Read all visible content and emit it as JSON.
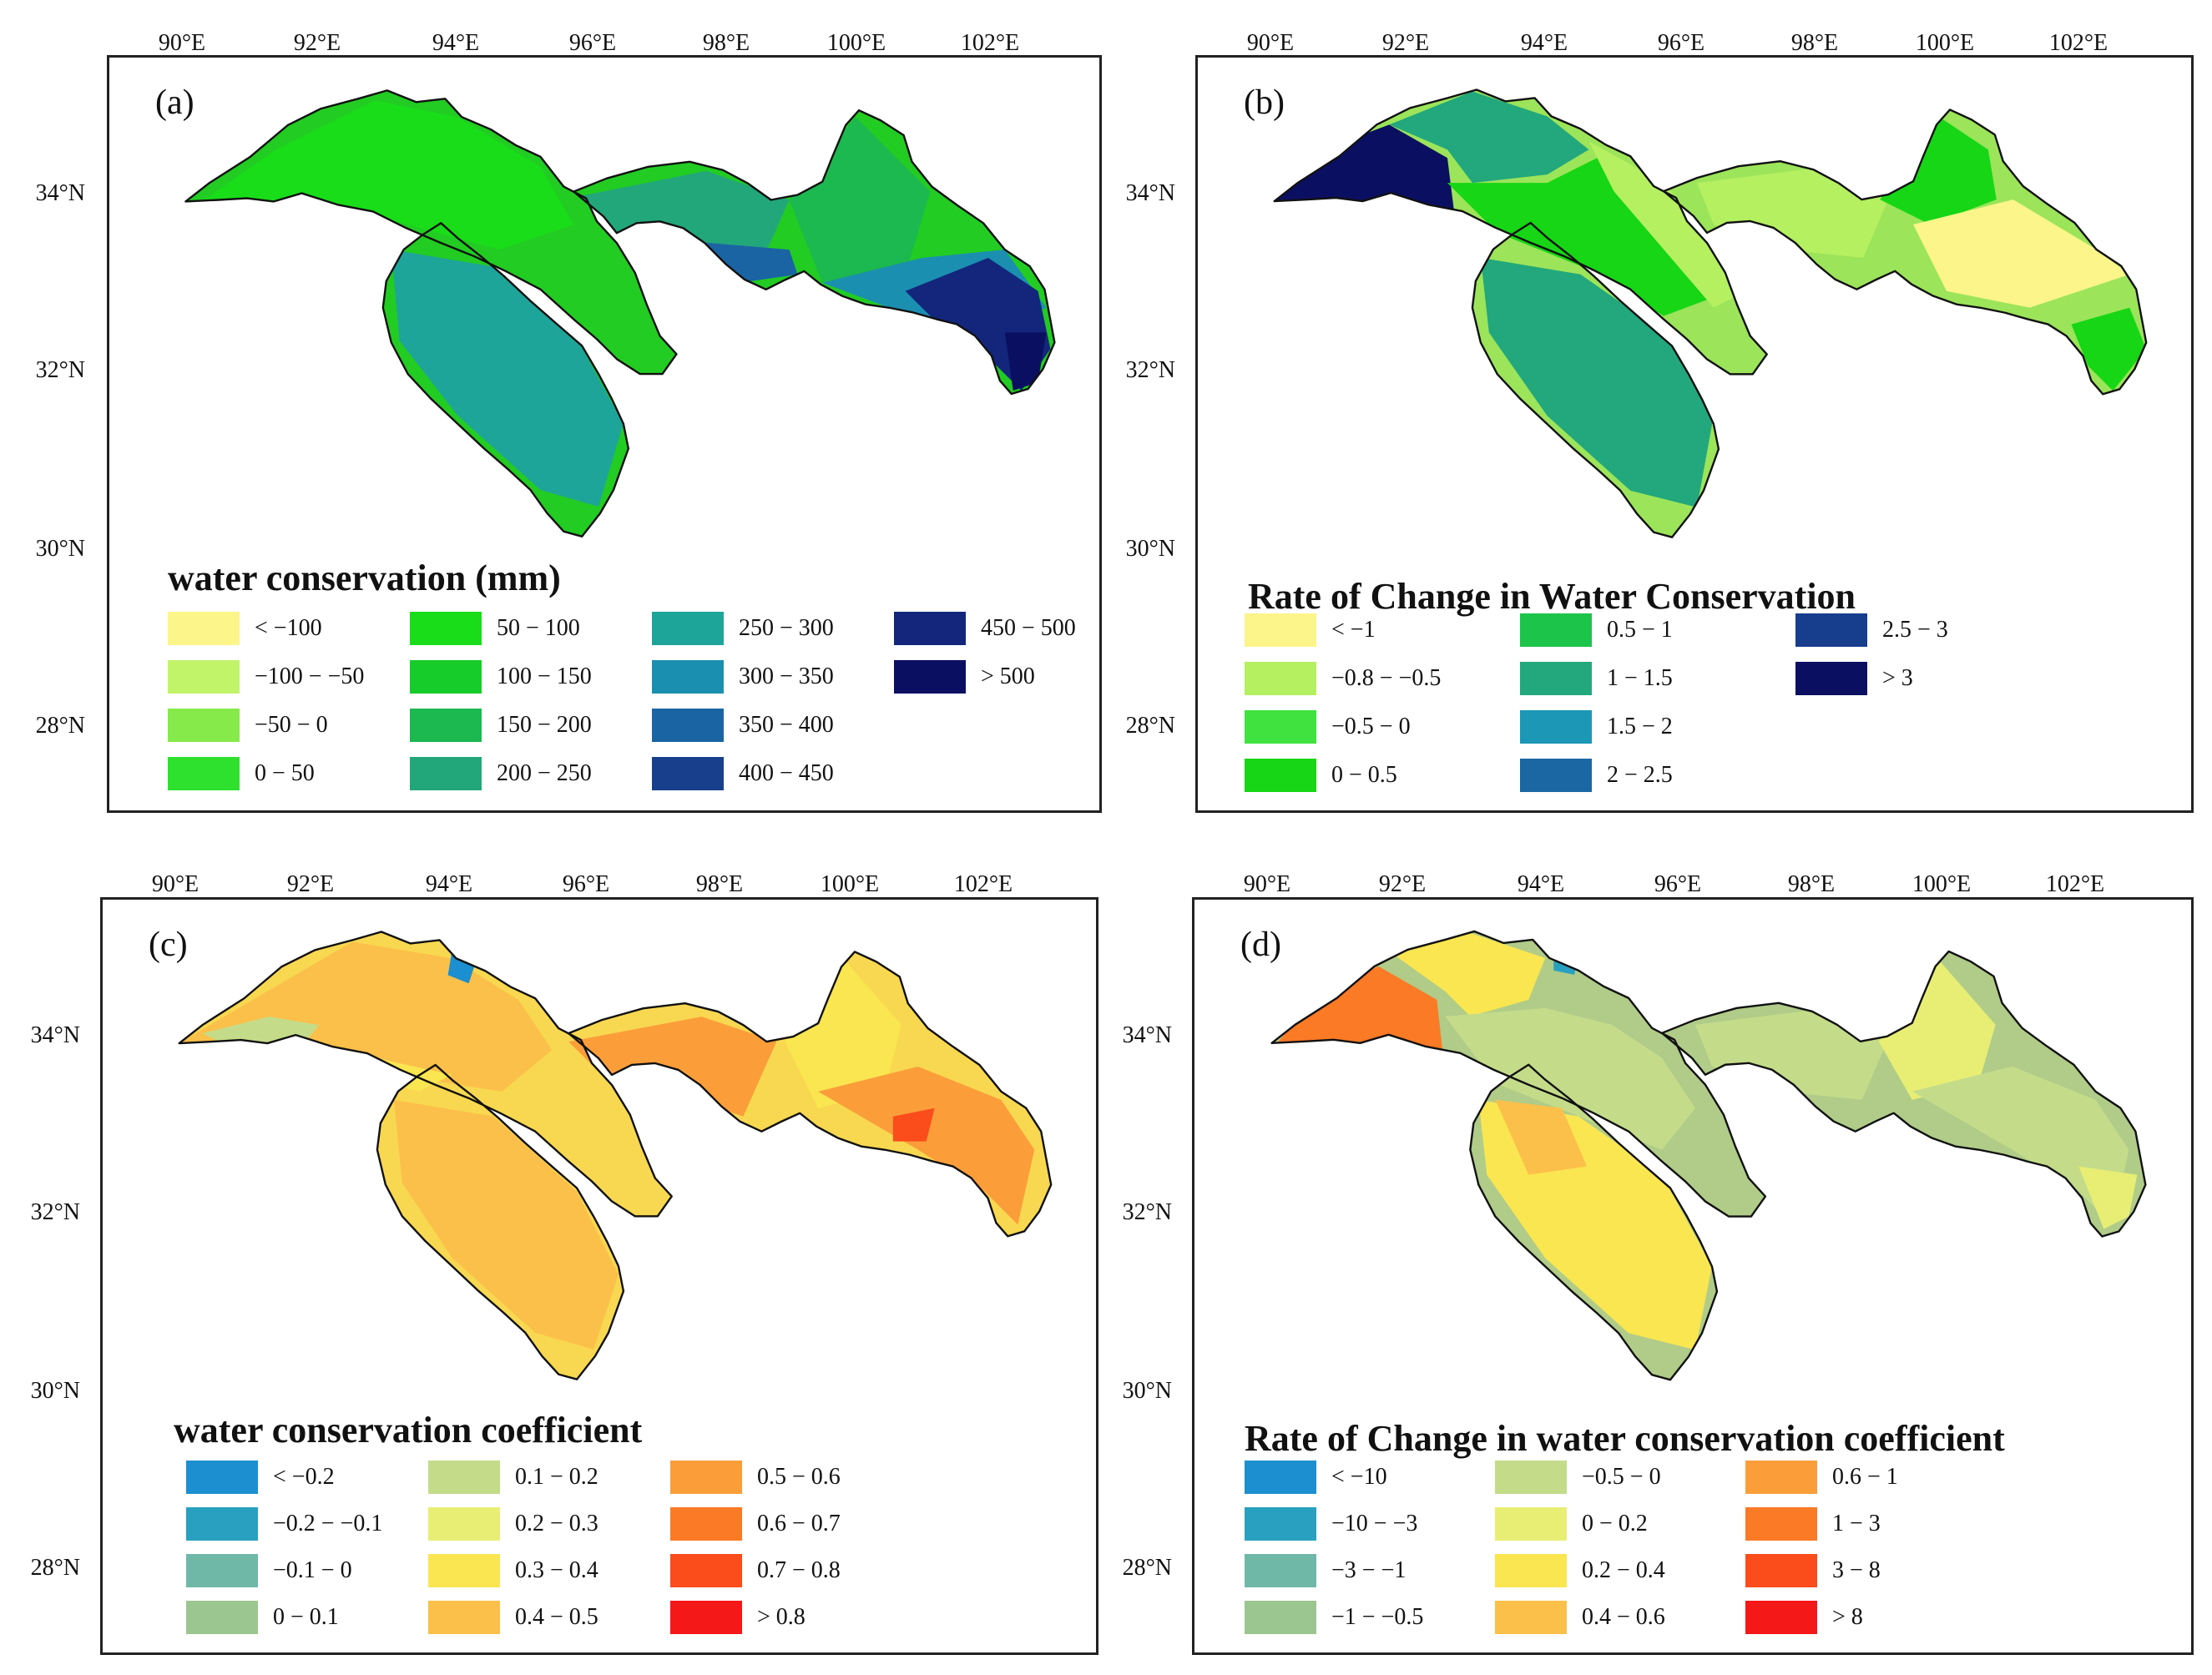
{
  "lon_labels": [
    "90°E",
    "92°E",
    "94°E",
    "96°E",
    "98°E",
    "100°E",
    "102°E"
  ],
  "lat_labels": [
    "34°N",
    "32°N",
    "30°N",
    "28°N"
  ],
  "panels": [
    {
      "id": "a",
      "label": "(a)",
      "legend_title": "water conservation (mm)",
      "base_color": "#22cc22",
      "legend": [
        {
          "label": "< −100",
          "color": "#fbf58a"
        },
        {
          "label": "−100 − −50",
          "color": "#c2f46a"
        },
        {
          "label": "−50 − 0",
          "color": "#86ea4a"
        },
        {
          "label": "0 − 50",
          "color": "#2fe12f"
        },
        {
          "label": "50 − 100",
          "color": "#19dd19"
        },
        {
          "label": "100 − 150",
          "color": "#16cc2a"
        },
        {
          "label": "150 − 200",
          "color": "#1cb850"
        },
        {
          "label": "200 − 250",
          "color": "#22a77a"
        },
        {
          "label": "250 − 300",
          "color": "#1ea59a"
        },
        {
          "label": "300 − 350",
          "color": "#1b8fb0"
        },
        {
          "label": "350 − 400",
          "color": "#1a64a3"
        },
        {
          "label": "400 − 450",
          "color": "#183f8c"
        },
        {
          "label": "450 − 500",
          "color": "#13267c"
        },
        {
          "label": "> 500",
          "color": "#0b0f62"
        }
      ]
    },
    {
      "id": "b",
      "label": "(b)",
      "legend_title": "Rate of Change in Water Conservation",
      "base_color": "#9ce45a",
      "legend": [
        {
          "label": "< −1",
          "color": "#fbf58a"
        },
        {
          "label": "−0.8 − −0.5",
          "color": "#b4f060"
        },
        {
          "label": "−0.5 − 0",
          "color": "#3fe23f"
        },
        {
          "label": "0 − 0.5",
          "color": "#16d616"
        },
        {
          "label": "0.5 − 1",
          "color": "#1cc44a"
        },
        {
          "label": "1 − 1.5",
          "color": "#22a87c"
        },
        {
          "label": "1.5 − 2",
          "color": "#1c97b5"
        },
        {
          "label": "2 − 2.5",
          "color": "#1a67a4"
        },
        {
          "label": "2.5 − 3",
          "color": "#173e8c"
        },
        {
          "label": "> 3",
          "color": "#0b0f62"
        }
      ]
    },
    {
      "id": "c",
      "label": "(c)",
      "legend_title": "water conservation coefficient",
      "base_color": "#f8d850",
      "legend": [
        {
          "label": "< −0.2",
          "color": "#1b8fd0"
        },
        {
          "label": "−0.2 − −0.1",
          "color": "#2aa0c0"
        },
        {
          "label": "−0.1 − 0",
          "color": "#6fb8a8"
        },
        {
          "label": "0 − 0.1",
          "color": "#9cc690"
        },
        {
          "label": "0.1 − 0.2",
          "color": "#c4dc8a"
        },
        {
          "label": "0.2 − 0.3",
          "color": "#e8ee74"
        },
        {
          "label": "0.3 − 0.4",
          "color": "#fae650"
        },
        {
          "label": "0.4 − 0.5",
          "color": "#fbc04a"
        },
        {
          "label": "0.5 − 0.6",
          "color": "#fb9e3a"
        },
        {
          "label": "0.6 − 0.7",
          "color": "#fb7a26"
        },
        {
          "label": "0.7 − 0.8",
          "color": "#fb4c1c"
        },
        {
          "label": "> 0.8",
          "color": "#f41818"
        }
      ]
    },
    {
      "id": "d",
      "label": "(d)",
      "legend_title": "Rate of Change in water conservation coefficient",
      "base_color": "#b0cc88",
      "legend": [
        {
          "label": "< −10",
          "color": "#1b8fd0"
        },
        {
          "label": "−10 − −3",
          "color": "#2aa0c0"
        },
        {
          "label": "−3 − −1",
          "color": "#6fb8a8"
        },
        {
          "label": "−1 − −0.5",
          "color": "#9cc690"
        },
        {
          "label": "−0.5 − 0",
          "color": "#c4dc8a"
        },
        {
          "label": "0 − 0.2",
          "color": "#e8ee74"
        },
        {
          "label": "0.2 − 0.4",
          "color": "#fae650"
        },
        {
          "label": "0.4 − 0.6",
          "color": "#fbc04a"
        },
        {
          "label": "0.6 − 1",
          "color": "#fb9e3a"
        },
        {
          "label": "1 − 3",
          "color": "#fb7a26"
        },
        {
          "label": "3 − 8",
          "color": "#fb4c1c"
        },
        {
          "label": "> 8",
          "color": "#f41818"
        }
      ]
    }
  ]
}
